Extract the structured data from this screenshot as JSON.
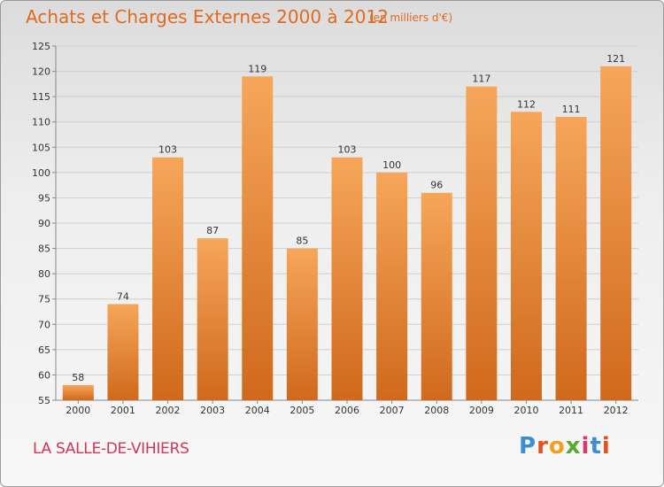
{
  "header": {
    "title": "Achats et Charges Externes 2000 à 2012",
    "subtitle": "(en milliers d'€)"
  },
  "footer": {
    "place": "LA SALLE-DE-VIHIERS",
    "logo": "Proxiti"
  },
  "colors": {
    "bar_light": "#f6a65a",
    "bar_dark": "#d0691c",
    "title": "#e06a20",
    "place": "#d0365a",
    "grid": "#cfcfcf"
  },
  "chart_data": {
    "type": "bar",
    "title": "Achats et Charges Externes 2000 à 2012",
    "subtitle": "(en milliers d'€)",
    "categories": [
      "2000",
      "2001",
      "2002",
      "2003",
      "2004",
      "2005",
      "2006",
      "2007",
      "2008",
      "2009",
      "2010",
      "2011",
      "2012"
    ],
    "values": [
      58,
      74,
      103,
      87,
      119,
      85,
      103,
      100,
      96,
      117,
      112,
      111,
      121
    ],
    "ylim": [
      55,
      125
    ],
    "yticks": [
      55,
      60,
      65,
      70,
      75,
      80,
      85,
      90,
      95,
      100,
      105,
      110,
      115,
      120,
      125
    ],
    "grid": true,
    "data_labels": true
  }
}
